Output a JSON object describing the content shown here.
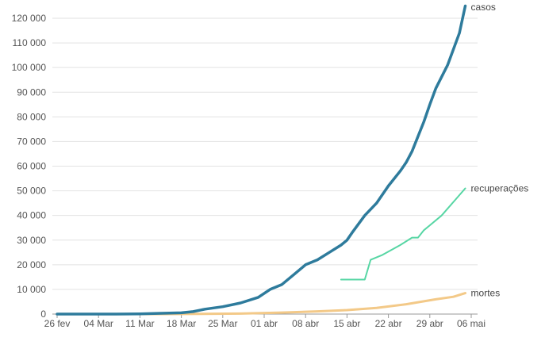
{
  "chart_data": {
    "type": "line",
    "title": "",
    "xlabel": "",
    "ylabel": "",
    "ylim": [
      0,
      120000
    ],
    "yticks": [
      0,
      10000,
      20000,
      30000,
      40000,
      50000,
      60000,
      70000,
      80000,
      90000,
      100000,
      110000,
      120000
    ],
    "ytick_labels": [
      "0",
      "10 000",
      "20 000",
      "30 000",
      "40 000",
      "50 000",
      "60 000",
      "70 000",
      "80 000",
      "90 000",
      "100 000",
      "110 000",
      "120 000"
    ],
    "xlim": [
      "2020-02-26",
      "2020-05-06"
    ],
    "xticks": [
      "2020-02-26",
      "2020-03-04",
      "2020-03-11",
      "2020-03-18",
      "2020-03-25",
      "2020-04-01",
      "2020-04-08",
      "2020-04-15",
      "2020-04-22",
      "2020-04-29",
      "2020-05-06"
    ],
    "xtick_labels": [
      "26 fev",
      "04 Mar",
      "11 Mar",
      "18 Mar",
      "25 Mar",
      "01 abr",
      "08 abr",
      "15 abr",
      "22 abr",
      "29 abr",
      "06 mai"
    ],
    "grid": true,
    "series": [
      {
        "name": "casos",
        "color": "#2e7b9c",
        "x": [
          "2020-02-26",
          "2020-03-01",
          "2020-03-04",
          "2020-03-07",
          "2020-03-11",
          "2020-03-14",
          "2020-03-18",
          "2020-03-20",
          "2020-03-22",
          "2020-03-25",
          "2020-03-28",
          "2020-03-31",
          "2020-04-02",
          "2020-04-04",
          "2020-04-06",
          "2020-04-08",
          "2020-04-10",
          "2020-04-12",
          "2020-04-14",
          "2020-04-15",
          "2020-04-16",
          "2020-04-18",
          "2020-04-20",
          "2020-04-22",
          "2020-04-24",
          "2020-04-25",
          "2020-04-26",
          "2020-04-28",
          "2020-04-29",
          "2020-04-30",
          "2020-05-02",
          "2020-05-04",
          "2020-05-05"
        ],
        "values": [
          0,
          0,
          0,
          0,
          100,
          300,
          500,
          1000,
          2000,
          3000,
          4500,
          6800,
          10000,
          12000,
          16000,
          20000,
          22000,
          25000,
          28000,
          30000,
          33500,
          40000,
          45000,
          52000,
          58000,
          61500,
          66000,
          78000,
          85000,
          91500,
          101000,
          114000,
          125000
        ]
      },
      {
        "name": "recuperações",
        "color": "#57d6a4",
        "x": [
          "2020-04-14",
          "2020-04-18",
          "2020-04-19",
          "2020-04-21",
          "2020-04-24",
          "2020-04-26",
          "2020-04-27",
          "2020-04-28",
          "2020-04-29",
          "2020-05-01",
          "2020-05-03",
          "2020-05-05"
        ],
        "values": [
          14000,
          14000,
          22000,
          24000,
          28000,
          31000,
          31000,
          34000,
          36000,
          40000,
          45500,
          51000
        ]
      },
      {
        "name": "mortes",
        "color": "#f3c988",
        "x": [
          "2020-02-26",
          "2020-03-15",
          "2020-03-21",
          "2020-03-28",
          "2020-04-04",
          "2020-04-10",
          "2020-04-15",
          "2020-04-20",
          "2020-04-25",
          "2020-04-30",
          "2020-05-03",
          "2020-05-05"
        ],
        "values": [
          0,
          0,
          50,
          200,
          600,
          1100,
          1600,
          2500,
          4000,
          6000,
          7000,
          8500
        ]
      }
    ]
  }
}
